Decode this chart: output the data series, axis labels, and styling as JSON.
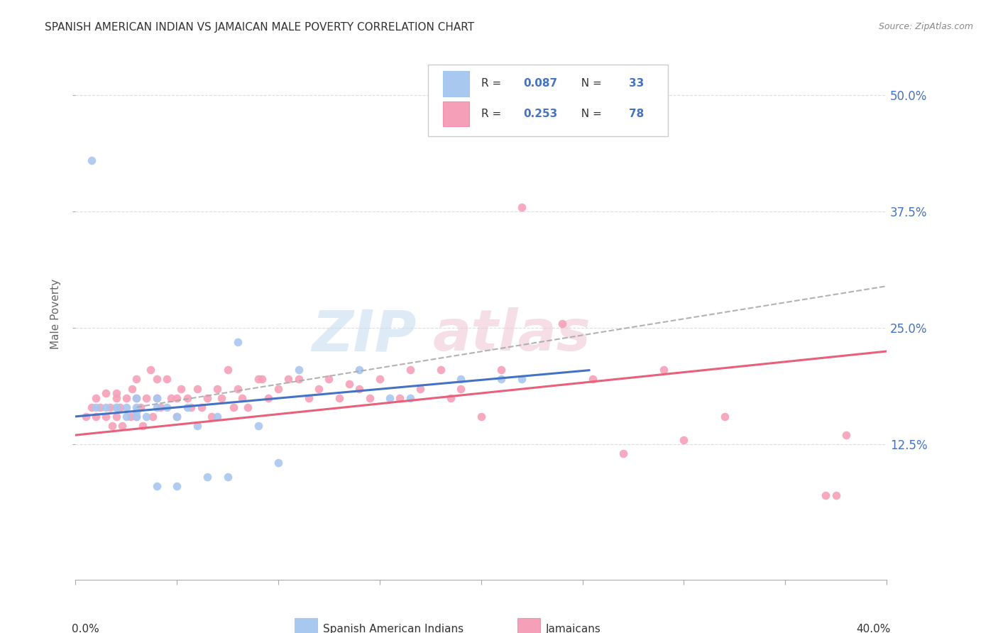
{
  "title": "SPANISH AMERICAN INDIAN VS JAMAICAN MALE POVERTY CORRELATION CHART",
  "source": "Source: ZipAtlas.com",
  "ylabel": "Male Poverty",
  "ytick_labels": [
    "12.5%",
    "25.0%",
    "37.5%",
    "50.0%"
  ],
  "ytick_values": [
    0.125,
    0.25,
    0.375,
    0.5
  ],
  "xlim": [
    0.0,
    0.4
  ],
  "ylim": [
    -0.02,
    0.55
  ],
  "color_blue": "#A8C8F0",
  "color_pink": "#F5A0B8",
  "color_blue_line": "#4472C4",
  "color_pink_line": "#E8607A",
  "color_dashed": "#AAAAAA",
  "background_color": "#FFFFFF",
  "grid_color": "#DDDDDD",
  "spanish_x": [
    0.008,
    0.01,
    0.015,
    0.02,
    0.02,
    0.025,
    0.025,
    0.03,
    0.03,
    0.03,
    0.03,
    0.035,
    0.04,
    0.04,
    0.04,
    0.045,
    0.05,
    0.05,
    0.055,
    0.06,
    0.065,
    0.07,
    0.075,
    0.08,
    0.09,
    0.1,
    0.11,
    0.14,
    0.155,
    0.165,
    0.19,
    0.21,
    0.22
  ],
  "spanish_y": [
    0.43,
    0.165,
    0.165,
    0.165,
    0.165,
    0.165,
    0.155,
    0.175,
    0.165,
    0.16,
    0.155,
    0.155,
    0.175,
    0.165,
    0.08,
    0.165,
    0.155,
    0.08,
    0.165,
    0.145,
    0.09,
    0.155,
    0.09,
    0.235,
    0.145,
    0.105,
    0.205,
    0.205,
    0.175,
    0.175,
    0.195,
    0.195,
    0.195
  ],
  "jamaican_x": [
    0.005,
    0.008,
    0.01,
    0.01,
    0.012,
    0.015,
    0.015,
    0.017,
    0.018,
    0.02,
    0.02,
    0.02,
    0.022,
    0.023,
    0.025,
    0.027,
    0.028,
    0.03,
    0.03,
    0.03,
    0.032,
    0.033,
    0.035,
    0.037,
    0.038,
    0.04,
    0.04,
    0.042,
    0.045,
    0.047,
    0.05,
    0.05,
    0.052,
    0.055,
    0.057,
    0.06,
    0.062,
    0.065,
    0.067,
    0.07,
    0.072,
    0.075,
    0.078,
    0.08,
    0.082,
    0.085,
    0.09,
    0.092,
    0.095,
    0.1,
    0.105,
    0.11,
    0.115,
    0.12,
    0.125,
    0.13,
    0.135,
    0.14,
    0.145,
    0.15,
    0.16,
    0.165,
    0.17,
    0.18,
    0.185,
    0.19,
    0.2,
    0.21,
    0.22,
    0.24,
    0.255,
    0.27,
    0.29,
    0.3,
    0.32,
    0.37,
    0.375,
    0.38
  ],
  "jamaican_y": [
    0.155,
    0.165,
    0.175,
    0.155,
    0.165,
    0.18,
    0.155,
    0.165,
    0.145,
    0.18,
    0.175,
    0.155,
    0.165,
    0.145,
    0.175,
    0.155,
    0.185,
    0.195,
    0.175,
    0.155,
    0.165,
    0.145,
    0.175,
    0.205,
    0.155,
    0.195,
    0.175,
    0.165,
    0.195,
    0.175,
    0.175,
    0.155,
    0.185,
    0.175,
    0.165,
    0.185,
    0.165,
    0.175,
    0.155,
    0.185,
    0.175,
    0.205,
    0.165,
    0.185,
    0.175,
    0.165,
    0.195,
    0.195,
    0.175,
    0.185,
    0.195,
    0.195,
    0.175,
    0.185,
    0.195,
    0.175,
    0.19,
    0.185,
    0.175,
    0.195,
    0.175,
    0.205,
    0.185,
    0.205,
    0.175,
    0.185,
    0.155,
    0.205,
    0.38,
    0.255,
    0.195,
    0.115,
    0.205,
    0.13,
    0.155,
    0.07,
    0.07,
    0.135
  ],
  "sp_line_x0": 0.0,
  "sp_line_y0": 0.155,
  "sp_line_x1": 0.255,
  "sp_line_y1": 0.205,
  "jam_line_x0": 0.0,
  "jam_line_y0": 0.135,
  "jam_line_x1": 0.4,
  "jam_line_y1": 0.225,
  "dash_line_x0": 0.03,
  "dash_line_y0": 0.165,
  "dash_line_x1": 0.4,
  "dash_line_y1": 0.295
}
